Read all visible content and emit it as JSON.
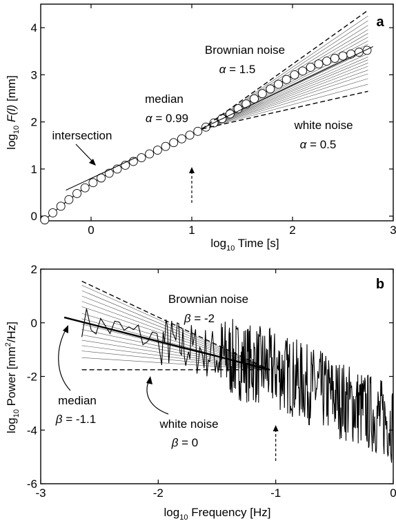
{
  "chart_data": [
    {
      "panel": "a",
      "type": "line",
      "xlabel_prefix": "log",
      "xlabel_sub": "10",
      "xlabel_main": " Time [s]",
      "ylabel_prefix": "log",
      "ylabel_sub": "10",
      "ylabel_main_italic": " F(l)",
      "ylabel_units": " [mm]",
      "xlim": [
        -0.5,
        3.0
      ],
      "ylim": [
        -0.1,
        4.5
      ],
      "xticks": [
        "0",
        "1",
        "2",
        "3"
      ],
      "xtick_values": [
        0,
        1,
        2,
        3
      ],
      "yticks": [
        "0",
        "1",
        "2",
        "3",
        "4"
      ],
      "ytick_values": [
        0,
        1,
        2,
        3,
        4
      ],
      "series": [
        {
          "style": "circles",
          "x": [
            -0.46,
            -0.38,
            -0.3,
            -0.22,
            -0.14,
            -0.06,
            0.02,
            0.1,
            0.18,
            0.26,
            0.34,
            0.42,
            0.5,
            0.58,
            0.66,
            0.74,
            0.82,
            0.9,
            0.98,
            1.06,
            1.14,
            1.22,
            1.3,
            1.38,
            1.46,
            1.54,
            1.62,
            1.7,
            1.78,
            1.86,
            1.94,
            2.02,
            2.1,
            2.18,
            2.26,
            2.34,
            2.42,
            2.5,
            2.58,
            2.66,
            2.74
          ],
          "y": [
            -0.08,
            0.07,
            0.21,
            0.35,
            0.48,
            0.6,
            0.71,
            0.81,
            0.91,
            1.0,
            1.08,
            1.16,
            1.24,
            1.32,
            1.4,
            1.48,
            1.56,
            1.64,
            1.72,
            1.8,
            1.89,
            1.98,
            2.07,
            2.17,
            2.28,
            2.38,
            2.49,
            2.6,
            2.7,
            2.8,
            2.9,
            3.0,
            3.08,
            3.16,
            3.23,
            3.29,
            3.35,
            3.4,
            3.44,
            3.48,
            3.52
          ]
        },
        {
          "style": "dashed",
          "x": [
            1.1,
            2.75
          ],
          "y": [
            1.85,
            4.37
          ]
        },
        {
          "style": "dashed",
          "x": [
            1.1,
            2.75
          ],
          "y": [
            1.85,
            2.65
          ]
        },
        {
          "style": "solid",
          "x": [
            -0.25,
            0.45
          ],
          "y": [
            0.55,
            1.25
          ]
        },
        {
          "style": "solid",
          "x": [
            1.1,
            2.8
          ],
          "y": [
            1.86,
            3.6
          ]
        }
      ],
      "fan": {
        "origin": [
          1.1,
          1.85
        ],
        "x_end": 2.75,
        "y_ends": [
          2.8,
          2.92,
          3.02,
          3.1,
          3.18,
          3.25,
          3.32,
          3.38,
          3.45,
          3.52,
          3.58,
          3.65,
          3.72,
          3.8,
          3.88,
          3.96,
          4.05,
          4.15,
          4.25
        ]
      },
      "annotations": [
        {
          "line1": "Brownian noise",
          "line2_sym": "α",
          "line2_val": " = 1.5"
        },
        {
          "line1": "median",
          "line2_sym": "α",
          "line2_val": " = 0.99"
        },
        {
          "line1": "white noise",
          "line2_sym": "α",
          "line2_val": " = 0.5"
        },
        {
          "line1": "intersection"
        }
      ],
      "arrow_x": 1.0
    },
    {
      "panel": "b",
      "type": "line",
      "xlabel_prefix": "log",
      "xlabel_sub": "10",
      "xlabel_main": " Frequency [Hz]",
      "ylabel_prefix": "log",
      "ylabel_sub": "10",
      "ylabel_main": " Power [mm",
      "ylabel_sup": "2",
      "ylabel_tail": "/Hz]",
      "xlim": [
        -3.0,
        0.0
      ],
      "ylim": [
        -6.0,
        2.0
      ],
      "xticks": [
        "-3",
        "-2",
        "-1",
        "0"
      ],
      "xtick_values": [
        -3,
        -2,
        -1,
        0
      ],
      "yticks": [
        "2",
        "0",
        "-2",
        "-4",
        "-6"
      ],
      "ytick_values": [
        2,
        0,
        -2,
        -4,
        -6
      ],
      "series": [
        {
          "style": "dashed",
          "x": [
            -2.65,
            -1.05
          ],
          "y": [
            1.55,
            -1.75
          ]
        },
        {
          "style": "dashed",
          "x": [
            -2.65,
            -1.05
          ],
          "y": [
            -1.75,
            -1.75
          ]
        },
        {
          "style": "solid_thick",
          "x": [
            -2.8,
            -1.05
          ],
          "y": [
            0.2,
            -1.75
          ]
        }
      ],
      "fan": {
        "origin": [
          -1.05,
          -1.75
        ],
        "x_end": -2.65,
        "y_ends": [
          1.4,
          1.2,
          1.0,
          0.8,
          0.6,
          0.35,
          0.15,
          -0.05,
          -0.25,
          -0.45,
          -0.65,
          -0.85,
          -1.05,
          -1.3
        ]
      },
      "annotations": [
        {
          "line1": "Brownian noise",
          "line2_sym": "β",
          "line2_val": " = -2"
        },
        {
          "line1": "median",
          "line2_sym": "β",
          "line2_val": "  = -1.1"
        },
        {
          "line1": "white noise",
          "line2_sym": "β",
          "line2_val": " = 0"
        }
      ],
      "arrow_x": -1.0
    }
  ]
}
